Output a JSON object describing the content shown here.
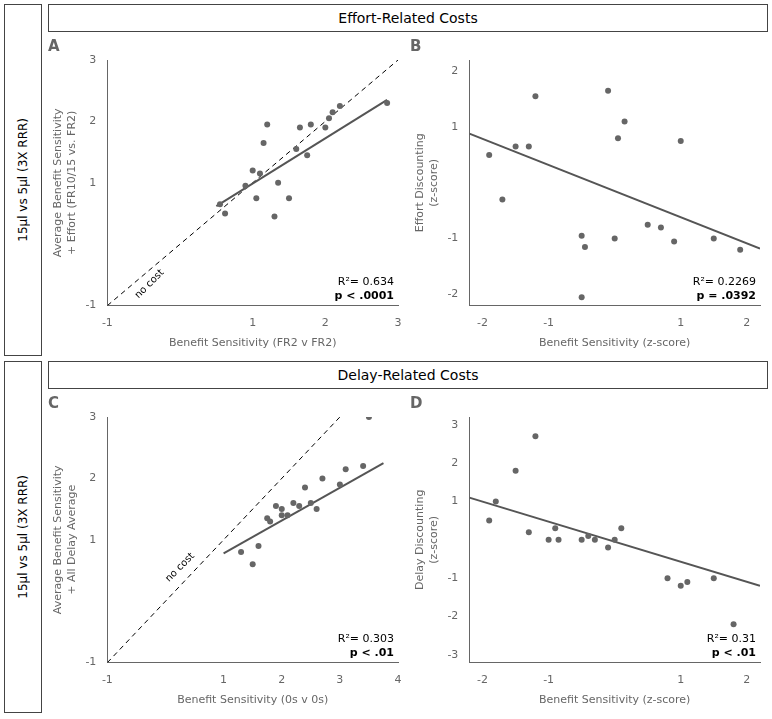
{
  "chart_data": [
    {
      "type": "scatter",
      "title": "A",
      "x_label": "Benefit Sensitivity (FR2 v FR2)",
      "y_label": "Average Benefit Sensitivity\n+ Effort (FR10/15 vs. FR2)",
      "xlim": [
        -1,
        3
      ],
      "ylim": [
        -1,
        3
      ],
      "xticks": [
        -1,
        1,
        2,
        3
      ],
      "yticks": [
        -1,
        1,
        2,
        3
      ],
      "grid": false,
      "series": [
        {
          "type": "scatter",
          "color": "#666666",
          "x": [
            0.55,
            0.62,
            0.9,
            1.0,
            1.05,
            1.1,
            1.15,
            1.2,
            1.3,
            1.35,
            1.5,
            1.6,
            1.65,
            1.75,
            1.8,
            2.0,
            2.05,
            2.1,
            2.2,
            2.85
          ],
          "values": [
            0.65,
            0.5,
            0.95,
            1.2,
            0.75,
            1.15,
            1.65,
            1.95,
            0.45,
            1.0,
            0.75,
            1.55,
            1.9,
            1.45,
            1.95,
            1.9,
            2.05,
            2.15,
            2.25,
            2.3
          ]
        },
        {
          "type": "line",
          "color": "#555555",
          "x": [
            0.5,
            2.85
          ],
          "values": [
            0.62,
            2.35
          ]
        },
        {
          "type": "line",
          "color": "black",
          "line_style": "dashed",
          "x": [
            -1,
            3
          ],
          "values": [
            -1,
            3
          ]
        }
      ],
      "annotations": [
        {
          "text": "no cost",
          "x": -0.42,
          "y": -0.65
        },
        {
          "text": "R²= 0.634"
        },
        {
          "text": "p < .0001"
        }
      ]
    },
    {
      "type": "scatter",
      "title": "B",
      "x_label": "Benefit Sensitivity (z-score)",
      "y_label": "Effort Discounting\n(z-score)",
      "xlim": [
        -2.2,
        2.2
      ],
      "ylim": [
        -2.2,
        2.2
      ],
      "xticks": [
        -2,
        -1,
        1,
        2
      ],
      "yticks": [
        -2,
        -1,
        1,
        2
      ],
      "grid": false,
      "series": [
        {
          "type": "scatter",
          "color": "#666666",
          "x": [
            -1.9,
            -1.7,
            -1.5,
            -1.3,
            -1.2,
            -0.5,
            -0.45,
            -0.1,
            0.0,
            0.05,
            0.15,
            0.5,
            0.7,
            0.9,
            1.0,
            1.5,
            1.9
          ],
          "values": [
            0.5,
            -0.3,
            0.65,
            0.65,
            1.55,
            -0.95,
            -1.15,
            1.65,
            -1.0,
            0.8,
            1.1,
            -0.75,
            -0.8,
            -1.05,
            0.75,
            -1.0,
            -1.2
          ]
        },
        {
          "type": "scatter",
          "color": "#666666",
          "x": [
            -0.5
          ],
          "values": [
            -2.05
          ]
        },
        {
          "type": "line",
          "color": "#555555",
          "x": [
            -2.2,
            2.2
          ],
          "values": [
            0.88,
            -1.18
          ]
        }
      ],
      "annotations": [
        {
          "text": "R²= 0.2269"
        },
        {
          "text": "p = .0392"
        }
      ]
    },
    {
      "type": "scatter",
      "title": "C",
      "x_label": "Benefit Sensitivity (0s v 0s)",
      "y_label": "Average Benefit Sensitivity\n+ All Delay Average",
      "xlim": [
        -1,
        4
      ],
      "ylim": [
        -1,
        3
      ],
      "xticks": [
        -1,
        1,
        2,
        3,
        4
      ],
      "yticks": [
        -1,
        1,
        2,
        3
      ],
      "grid": false,
      "series": [
        {
          "type": "scatter",
          "color": "#666666",
          "x": [
            1.3,
            1.5,
            1.6,
            1.75,
            1.8,
            1.9,
            2.0,
            2.0,
            2.1,
            2.2,
            2.3,
            2.4,
            2.5,
            2.6,
            2.7,
            3.0,
            3.1,
            3.4,
            3.5
          ],
          "values": [
            0.8,
            0.6,
            0.9,
            1.35,
            1.3,
            1.55,
            1.5,
            1.4,
            1.4,
            1.6,
            1.55,
            1.85,
            1.6,
            1.5,
            2.0,
            1.9,
            2.15,
            2.2,
            3.0
          ]
        },
        {
          "type": "line",
          "color": "#555555",
          "x": [
            1.0,
            3.75
          ],
          "values": [
            0.78,
            2.25
          ]
        },
        {
          "type": "line",
          "color": "black",
          "line_style": "dashed",
          "x": [
            -1,
            3
          ],
          "values": [
            -1,
            3
          ]
        }
      ],
      "annotations": [
        {
          "text": "no cost",
          "x": 0.25,
          "y": 0.55
        },
        {
          "text": "R²= 0.303"
        },
        {
          "text": "p < .01"
        }
      ]
    },
    {
      "type": "scatter",
      "title": "D",
      "x_label": "Benefit Sensitivity (z-score)",
      "y_label": "Delay Discounting\n(z-score)",
      "xlim": [
        -2.2,
        2.2
      ],
      "ylim": [
        -3.2,
        3.2
      ],
      "xticks": [
        -2,
        -1,
        1,
        2
      ],
      "yticks": [
        -3,
        -2,
        -1,
        1,
        2,
        3
      ],
      "grid": false,
      "series": [
        {
          "type": "scatter",
          "color": "#666666",
          "x": [
            -1.9,
            -1.8,
            -1.5,
            -1.3,
            -1.2,
            -1.0,
            -0.9,
            -0.85,
            -0.5,
            -0.4,
            -0.3,
            -0.1,
            0.0,
            0.1,
            0.8,
            1.0,
            1.1,
            1.5,
            1.8
          ],
          "values": [
            0.5,
            1.0,
            1.8,
            0.2,
            2.7,
            0.0,
            0.3,
            0.0,
            0.0,
            0.1,
            0.0,
            -0.2,
            0.0,
            0.3,
            -1.0,
            -1.2,
            -1.1,
            -1.0,
            -2.2
          ]
        },
        {
          "type": "line",
          "color": "#555555",
          "x": [
            -2.2,
            2.2
          ],
          "values": [
            1.1,
            -1.2
          ]
        }
      ],
      "annotations": [
        {
          "text": "R²= 0.31"
        },
        {
          "text": "p < .01"
        }
      ]
    }
  ],
  "sections": [
    {
      "title": "Effort-Related Costs",
      "row_label": "15μl vs 5μl (3X RRR)"
    },
    {
      "title": "Delay-Related Costs",
      "row_label": "15μl vs 5μl (3X RRR)"
    }
  ]
}
